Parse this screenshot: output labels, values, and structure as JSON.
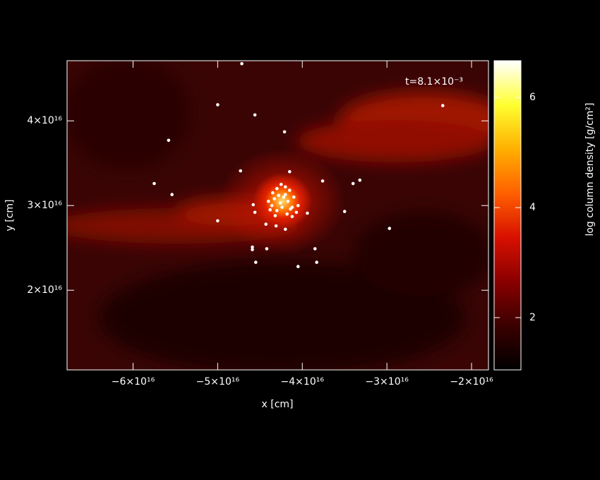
{
  "chart_data": {
    "type": "scatter",
    "annotation": "t=8.1×10⁻³",
    "x_label": "x [cm]",
    "y_label": "y [cm]",
    "colorbar_label": "log column density [g/cm²]",
    "color": "#ffffff",
    "colormap": [
      "#000000",
      "#3a0000",
      "#8a0000",
      "#d81000",
      "#ff6000",
      "#ffb000",
      "#ffff30",
      "#ffffff"
    ],
    "xlim": [
      -6.78e+16,
      -1.8e+16
    ],
    "ylim": [
      1.06e+16,
      4.71e+16
    ],
    "xticks": [
      {
        "value": -6e+16,
        "label": "−6×10¹⁶"
      },
      {
        "value": -5e+16,
        "label": "−5×10¹⁶"
      },
      {
        "value": -4e+16,
        "label": "−4×10¹⁶"
      },
      {
        "value": -3e+16,
        "label": "−3×10¹⁶"
      },
      {
        "value": -2e+16,
        "label": "−2×10¹⁶"
      }
    ],
    "yticks": [
      {
        "value": 2e+16,
        "label": "2×10¹⁶"
      },
      {
        "value": 3e+16,
        "label": "3×10¹⁶"
      },
      {
        "value": 4e+16,
        "label": "4×10¹⁶"
      }
    ],
    "clim": [
      1.05,
      6.67
    ],
    "cticks": [
      2,
      4,
      6
    ],
    "x": [
      -4.715e+16,
      -5e+16,
      -4.56e+16,
      -2.34e+16,
      -5.58e+16,
      -4.21e+16,
      -4.73e+16,
      -5.75e+16,
      -5.54e+16,
      -3.76e+16,
      -3.4e+16,
      -3.32e+16,
      -5e+16,
      -3.5e+16,
      -2.97e+16,
      -4.59e+16,
      -4.59e+16,
      -4.42e+16,
      -3.85e+16,
      -4.55e+16,
      -3.83e+16,
      -4.05e+16,
      -4.15e+16,
      -3.94e+16,
      -4.43e+16,
      -4.2e+16,
      -4.31e+16,
      -4.58e+16,
      -4.56e+16,
      -4.4e+16,
      -4.35e+16,
      -4.3e+16,
      -4.25e+16,
      -4.2e+16,
      -4.15e+16,
      -4.1e+16,
      -4.05e+16,
      -4.38e+16,
      -4.33e+16,
      -4.28e+16,
      -4.22e+16,
      -4.17e+16,
      -4.12e+16,
      -4.07e+16,
      -4.36e+16,
      -4.3e+16,
      -4.24e+16,
      -4.18e+16,
      -4.12e+16,
      -4.26e+16,
      -4.2e+16,
      -4.14e+16,
      -4.32e+16
    ],
    "values": [
      4.675e+16,
      4.19e+16,
      4.07e+16,
      4.18e+16,
      3.77e+16,
      3.87e+16,
      3.41e+16,
      3.26e+16,
      3.13e+16,
      3.29e+16,
      3.26e+16,
      3.3e+16,
      2.82e+16,
      2.93e+16,
      2.73e+16,
      2.51e+16,
      2.48e+16,
      2.49e+16,
      2.49e+16,
      2.33e+16,
      2.33e+16,
      2.28e+16,
      3.4e+16,
      2.91e+16,
      2.78e+16,
      2.72e+16,
      2.76e+16,
      3.01e+16,
      2.92e+16,
      3.05e+16,
      3.15e+16,
      3.2e+16,
      3.25e+16,
      3.22e+16,
      3.18e+16,
      3.1e+16,
      3e+16,
      2.95e+16,
      3.08e+16,
      3.12e+16,
      3.1e+16,
      3.05e+16,
      2.98e+16,
      2.92e+16,
      3e+16,
      2.94e+16,
      2.98e+16,
      2.9e+16,
      2.87e+16,
      3.03e+16,
      3.13e+16,
      2.96e+16,
      2.88e+16
    ]
  }
}
